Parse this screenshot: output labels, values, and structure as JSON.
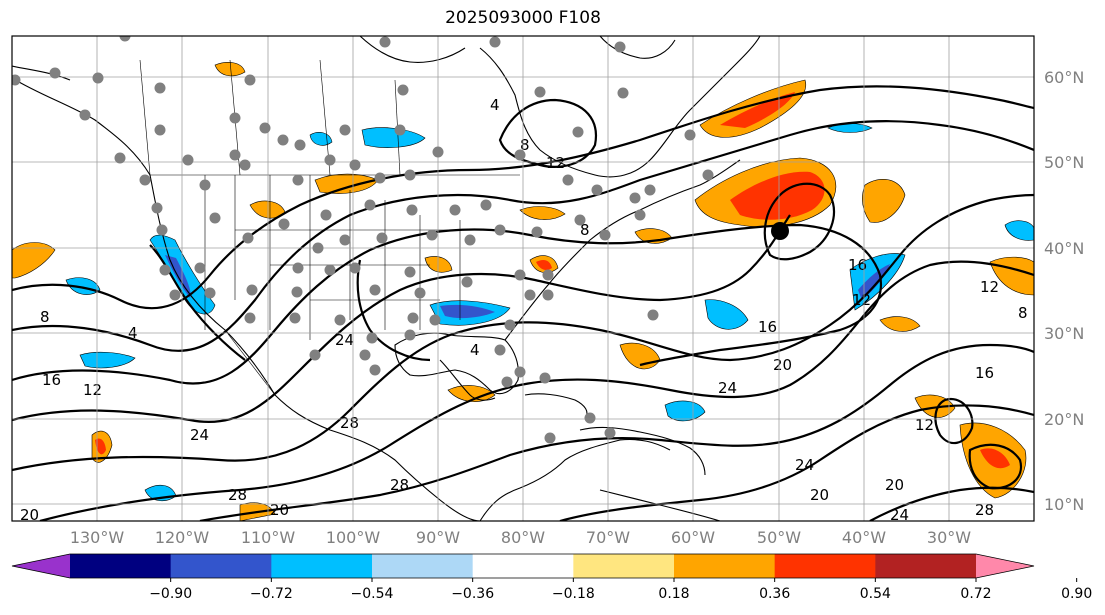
{
  "title": "2025093000 F108",
  "lat_labels": [
    "60°N",
    "50°N",
    "40°N",
    "30°N",
    "20°N",
    "10°N"
  ],
  "lon_labels": [
    "130°W",
    "120°W",
    "110°W",
    "100°W",
    "90°W",
    "80°W",
    "70°W",
    "60°W",
    "50°W",
    "40°W",
    "30°W"
  ],
  "colorbar": {
    "ticks": [
      "−0.90",
      "−0.72",
      "−0.54",
      "−0.36",
      "−0.18",
      "0.18",
      "0.36",
      "0.54",
      "0.72",
      "0.90"
    ],
    "colors": [
      "#9932CC",
      "#000080",
      "#3355CC",
      "#00BFFF",
      "#ADD8F6",
      "#FFFFFF",
      "#FFE680",
      "#FFA500",
      "#FF3300",
      "#B22222",
      "#FF88AA"
    ]
  },
  "contour_labels": [
    "4",
    "8",
    "12",
    "16",
    "20",
    "24",
    "28",
    "4",
    "8",
    "12",
    "16",
    "20",
    "24",
    "28",
    "8",
    "12",
    "16",
    "20",
    "24",
    "28",
    "28",
    "24",
    "20",
    "12",
    "16",
    "8",
    "24",
    "20",
    "12",
    "4"
  ],
  "colors": {
    "grid": "#a0a0a0",
    "contour": "#000000",
    "obs_dot": "#808080",
    "marker": "#000000"
  }
}
